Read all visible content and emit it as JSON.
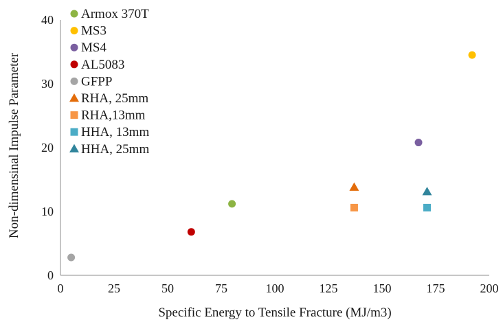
{
  "chart_data": {
    "type": "scatter",
    "title": "",
    "xlabel": "Specific Energy to Tensile Fracture (MJ/m3)",
    "ylabel": "Non-dimensinal Impulse Parameter",
    "xlim": [
      0,
      200
    ],
    "ylim": [
      0,
      40
    ],
    "x_ticks": [
      0,
      25,
      50,
      75,
      100,
      125,
      150,
      175,
      200
    ],
    "y_ticks": [
      0,
      10,
      20,
      30,
      40
    ],
    "grid": false,
    "legend_position": "top-left",
    "series": [
      {
        "name": "Armox 370T",
        "marker": "circle",
        "color": "#8DB443",
        "points": [
          {
            "x": 80,
            "y": 11.2
          }
        ]
      },
      {
        "name": "MS3",
        "marker": "circle",
        "color": "#FFC000",
        "points": [
          {
            "x": 192,
            "y": 34.5
          }
        ]
      },
      {
        "name": "MS4",
        "marker": "circle",
        "color": "#7A5FA0",
        "points": [
          {
            "x": 167,
            "y": 20.8
          }
        ]
      },
      {
        "name": "AL5083",
        "marker": "circle",
        "color": "#C00000",
        "points": [
          {
            "x": 61,
            "y": 6.8
          }
        ]
      },
      {
        "name": "GFPP",
        "marker": "circle",
        "color": "#A5A5A5",
        "points": [
          {
            "x": 5,
            "y": 2.8
          }
        ]
      },
      {
        "name": "RHA, 25mm",
        "marker": "triangle",
        "color": "#E36C0A",
        "points": [
          {
            "x": 137,
            "y": 13.8
          }
        ]
      },
      {
        "name": "RHA,13mm",
        "marker": "square",
        "color": "#F79646",
        "points": [
          {
            "x": 137,
            "y": 10.6
          }
        ]
      },
      {
        "name": "HHA, 13mm",
        "marker": "square",
        "color": "#4BACC6",
        "points": [
          {
            "x": 171,
            "y": 10.6
          }
        ]
      },
      {
        "name": "HHA, 25mm",
        "marker": "triangle",
        "color": "#31859C",
        "points": [
          {
            "x": 171,
            "y": 13.1
          }
        ]
      }
    ]
  }
}
